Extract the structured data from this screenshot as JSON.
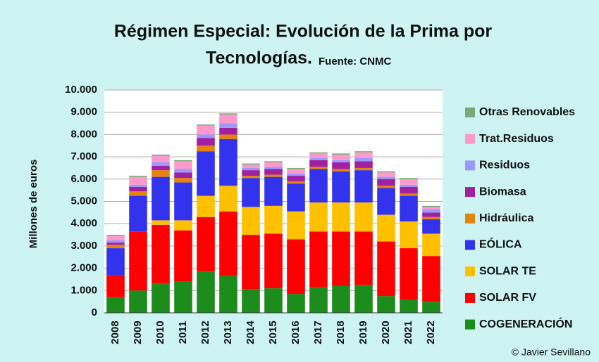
{
  "chart_data": {
    "type": "stacked_bar",
    "title_line1": "Régimen Especial: Evolución de la Prima por",
    "title_line2": "Tecnologías.",
    "source": "Fuente: CNMC",
    "y_label": "Millones de euros",
    "credit": "© Javier Sevillano",
    "categories": [
      "2008",
      "2009",
      "2010",
      "2011",
      "2012",
      "2013",
      "2014",
      "2015",
      "2016",
      "2017",
      "2018",
      "2019",
      "2020",
      "2021",
      "2022"
    ],
    "series": [
      {
        "name": "COGENERACIÓN",
        "color": "#1c8c1c",
        "values": [
          700,
          1000,
          1300,
          1400,
          1850,
          1650,
          1050,
          1100,
          850,
          1150,
          1200,
          1250,
          750,
          600,
          500
        ]
      },
      {
        "name": "SOLAR FV",
        "color": "#ff0000",
        "values": [
          1000,
          2650,
          2650,
          2300,
          2450,
          2900,
          2450,
          2450,
          2450,
          2500,
          2450,
          2400,
          2450,
          2300,
          2050
        ]
      },
      {
        "name": "SOLAR TE",
        "color": "#ffc000",
        "values": [
          0,
          0,
          200,
          450,
          950,
          1150,
          1250,
          1250,
          1250,
          1300,
          1300,
          1300,
          1200,
          1200,
          1000
        ]
      },
      {
        "name": "EÓLICA",
        "color": "#3333ee",
        "values": [
          1200,
          1600,
          1950,
          1700,
          2000,
          2100,
          1300,
          1300,
          1250,
          1500,
          1400,
          1450,
          1200,
          1150,
          650
        ]
      },
      {
        "name": "Hidráulica",
        "color": "#e6820e",
        "values": [
          150,
          200,
          300,
          200,
          250,
          200,
          100,
          100,
          100,
          100,
          100,
          100,
          100,
          100,
          100
        ]
      },
      {
        "name": "Biomasa",
        "color": "#a020a0",
        "values": [
          100,
          200,
          200,
          250,
          350,
          300,
          250,
          250,
          250,
          300,
          300,
          300,
          300,
          300,
          200
        ]
      },
      {
        "name": "Residuos",
        "color": "#9999ff",
        "values": [
          100,
          100,
          150,
          150,
          150,
          200,
          100,
          100,
          100,
          100,
          100,
          150,
          100,
          100,
          150
        ]
      },
      {
        "name": "Trat.Residuos",
        "color": "#ff99cc",
        "values": [
          200,
          350,
          300,
          350,
          400,
          400,
          150,
          200,
          200,
          200,
          250,
          250,
          200,
          250,
          100
        ]
      },
      {
        "name": "Otras Renovables",
        "color": "#77aa77",
        "values": [
          50,
          50,
          50,
          50,
          50,
          50,
          50,
          50,
          50,
          50,
          50,
          50,
          50,
          50,
          50
        ]
      }
    ],
    "ylim": [
      0,
      10000
    ],
    "yticks": [
      0,
      {
        "value": 1000,
        "label": "1.000"
      },
      {
        "value": 2000,
        "label": "2.000"
      },
      {
        "value": 3000,
        "label": "3.000"
      },
      {
        "value": 4000,
        "label": "4.000"
      },
      {
        "value": 5000,
        "label": "5.000"
      },
      {
        "value": 6000,
        "label": "6.000"
      },
      {
        "value": 7000,
        "label": "7.000"
      },
      {
        "value": 8000,
        "label": "8.000"
      },
      {
        "value": 9000,
        "label": "9.000"
      },
      {
        "value": 10000,
        "label": "10.000"
      }
    ],
    "grid": true,
    "legend": "right"
  }
}
